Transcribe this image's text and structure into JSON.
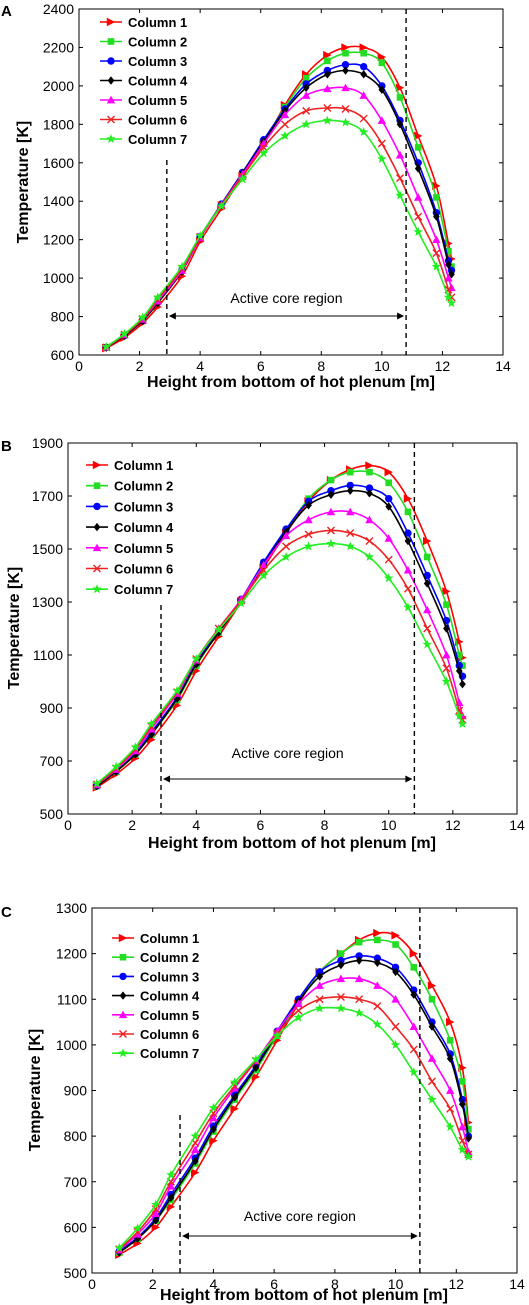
{
  "figure": {
    "series_colors": [
      "#ff0000",
      "#22dd22",
      "#0000ff",
      "#000000",
      "#ff00ff",
      "#ee2222",
      "#22ee22"
    ],
    "series_markers": [
      "triangle-right",
      "square",
      "circle",
      "diamond",
      "triangle-up",
      "x",
      "star"
    ]
  },
  "chart_data": [
    {
      "panel": "A",
      "type": "line",
      "xlabel": "Height from bottom of hot plenum [m]",
      "ylabel": "Temperature [K]",
      "xlim": [
        0,
        14
      ],
      "ylim": [
        600,
        2400
      ],
      "xticks": [
        0,
        2,
        4,
        6,
        8,
        10,
        12,
        14
      ],
      "yticks": [
        600,
        800,
        1000,
        1200,
        1400,
        1600,
        1800,
        2000,
        2200,
        2400
      ],
      "legend": "top-left",
      "grid": false,
      "annotation": {
        "text": "Active core region",
        "x_start": 2.9,
        "x_end": 10.8
      },
      "x": [
        0.9,
        1.5,
        2.1,
        2.6,
        3.4,
        4.0,
        4.7,
        5.4,
        6.1,
        6.8,
        7.5,
        8.2,
        8.8,
        9.4,
        10.0,
        10.6,
        11.2,
        11.8,
        12.2,
        12.3
      ],
      "series": [
        {
          "name": "Column 1",
          "values": [
            635,
            690,
            765,
            850,
            1010,
            1190,
            1360,
            1530,
            1700,
            1900,
            2060,
            2160,
            2200,
            2200,
            2150,
            1990,
            1740,
            1480,
            1180,
            1100
          ]
        },
        {
          "name": "Column 2",
          "values": [
            640,
            705,
            785,
            880,
            1040,
            1210,
            1380,
            1545,
            1710,
            1890,
            2040,
            2130,
            2170,
            2170,
            2120,
            1940,
            1680,
            1420,
            1140,
            1060
          ]
        },
        {
          "name": "Column 3",
          "values": [
            640,
            702,
            780,
            875,
            1040,
            1215,
            1385,
            1550,
            1720,
            1880,
            2010,
            2080,
            2110,
            2100,
            2000,
            1820,
            1600,
            1340,
            1090,
            1040
          ]
        },
        {
          "name": "Column 4",
          "values": [
            638,
            700,
            778,
            870,
            1035,
            1210,
            1380,
            1545,
            1710,
            1870,
            1990,
            2060,
            2080,
            2060,
            1980,
            1800,
            1570,
            1320,
            1070,
            1020
          ]
        },
        {
          "name": "Column 5",
          "values": [
            640,
            705,
            785,
            880,
            1040,
            1210,
            1380,
            1540,
            1700,
            1850,
            1950,
            1985,
            1990,
            1950,
            1820,
            1640,
            1420,
            1200,
            1000,
            950
          ]
        },
        {
          "name": "Column 6",
          "values": [
            640,
            706,
            788,
            890,
            1050,
            1215,
            1380,
            1530,
            1680,
            1800,
            1870,
            1885,
            1880,
            1830,
            1700,
            1520,
            1320,
            1130,
            940,
            900
          ]
        },
        {
          "name": "Column 7",
          "values": [
            642,
            710,
            795,
            900,
            1060,
            1220,
            1375,
            1515,
            1650,
            1740,
            1800,
            1820,
            1810,
            1760,
            1620,
            1430,
            1240,
            1060,
            900,
            870
          ]
        }
      ]
    },
    {
      "panel": "B",
      "type": "line",
      "xlabel": "Height from bottom of hot plenum [m]",
      "ylabel": "Temperature [K]",
      "xlim": [
        0,
        14
      ],
      "ylim": [
        500,
        1900
      ],
      "xticks": [
        0,
        2,
        4,
        6,
        8,
        10,
        12,
        14
      ],
      "yticks": [
        500,
        700,
        900,
        1100,
        1300,
        1500,
        1700,
        1900
      ],
      "legend": "top-left",
      "grid": false,
      "annotation": {
        "text": "Active core region",
        "x_start": 2.9,
        "x_end": 10.8
      },
      "x": [
        0.9,
        1.5,
        2.1,
        2.6,
        3.4,
        4.0,
        4.7,
        5.4,
        6.1,
        6.8,
        7.5,
        8.2,
        8.8,
        9.4,
        10.0,
        10.6,
        11.2,
        11.8,
        12.2,
        12.3
      ],
      "series": [
        {
          "name": "Column 1",
          "values": [
            600,
            650,
            710,
            780,
            910,
            1040,
            1170,
            1300,
            1430,
            1560,
            1680,
            1760,
            1800,
            1815,
            1790,
            1690,
            1530,
            1340,
            1150,
            1090
          ]
        },
        {
          "name": "Column 2",
          "values": [
            605,
            660,
            725,
            800,
            930,
            1060,
            1185,
            1305,
            1440,
            1570,
            1690,
            1760,
            1790,
            1790,
            1750,
            1640,
            1470,
            1290,
            1100,
            1060
          ]
        },
        {
          "name": "Column 3",
          "values": [
            607,
            662,
            728,
            808,
            940,
            1070,
            1190,
            1310,
            1450,
            1575,
            1680,
            1720,
            1740,
            1730,
            1690,
            1560,
            1400,
            1230,
            1060,
            1020
          ]
        },
        {
          "name": "Column 4",
          "values": [
            605,
            660,
            725,
            800,
            935,
            1065,
            1185,
            1305,
            1440,
            1565,
            1665,
            1705,
            1720,
            1710,
            1660,
            1530,
            1370,
            1200,
            1040,
            990
          ]
        },
        {
          "name": "Column 5",
          "values": [
            610,
            668,
            738,
            820,
            955,
            1080,
            1200,
            1310,
            1440,
            1550,
            1610,
            1640,
            1640,
            1610,
            1540,
            1420,
            1270,
            1100,
            920,
            870
          ]
        },
        {
          "name": "Column 6",
          "values": [
            612,
            672,
            745,
            830,
            960,
            1085,
            1200,
            1305,
            1420,
            1510,
            1555,
            1570,
            1560,
            1530,
            1460,
            1350,
            1200,
            1050,
            890,
            855
          ]
        },
        {
          "name": "Column 7",
          "values": [
            615,
            678,
            752,
            840,
            965,
            1085,
            1195,
            1295,
            1400,
            1470,
            1510,
            1520,
            1510,
            1470,
            1390,
            1280,
            1140,
            1000,
            870,
            840
          ]
        }
      ]
    },
    {
      "panel": "C",
      "type": "line",
      "xlabel": "Height from bottom of hot plenum [m]",
      "ylabel": "Temperature [K]",
      "xlim": [
        0,
        14
      ],
      "ylim": [
        500,
        1300
      ],
      "xticks": [
        0,
        2,
        4,
        6,
        8,
        10,
        12,
        14
      ],
      "yticks": [
        500,
        600,
        700,
        800,
        900,
        1000,
        1100,
        1200,
        1300
      ],
      "legend": "top-left",
      "grid": false,
      "annotation": {
        "text": "Active core region",
        "x_start": 2.9,
        "x_end": 10.8
      },
      "x": [
        0.9,
        1.5,
        2.1,
        2.6,
        3.4,
        4.0,
        4.7,
        5.4,
        6.1,
        6.8,
        7.5,
        8.2,
        8.8,
        9.4,
        10.0,
        10.6,
        11.2,
        11.8,
        12.2,
        12.4
      ],
      "series": [
        {
          "name": "Column 1",
          "values": [
            540,
            565,
            600,
            645,
            720,
            790,
            860,
            930,
            1010,
            1090,
            1160,
            1200,
            1230,
            1245,
            1240,
            1200,
            1130,
            1050,
            950,
            830
          ]
        },
        {
          "name": "Column 2",
          "values": [
            545,
            575,
            615,
            660,
            740,
            810,
            880,
            945,
            1020,
            1095,
            1160,
            1200,
            1225,
            1230,
            1220,
            1170,
            1100,
            1010,
            920,
            815
          ]
        },
        {
          "name": "Column 3",
          "values": [
            548,
            578,
            620,
            672,
            752,
            822,
            890,
            955,
            1030,
            1100,
            1160,
            1185,
            1195,
            1190,
            1170,
            1120,
            1050,
            980,
            880,
            800
          ]
        },
        {
          "name": "Column 4",
          "values": [
            545,
            575,
            615,
            665,
            745,
            815,
            885,
            950,
            1025,
            1095,
            1150,
            1175,
            1185,
            1180,
            1160,
            1110,
            1040,
            970,
            870,
            795
          ]
        },
        {
          "name": "Column 5",
          "values": [
            550,
            585,
            630,
            690,
            770,
            840,
            905,
            965,
            1030,
            1090,
            1130,
            1145,
            1145,
            1130,
            1100,
            1040,
            970,
            900,
            820,
            765
          ]
        },
        {
          "name": "Column 6",
          "values": [
            552,
            590,
            640,
            700,
            785,
            850,
            910,
            965,
            1025,
            1075,
            1100,
            1105,
            1100,
            1085,
            1040,
            990,
            920,
            860,
            790,
            760
          ]
        },
        {
          "name": "Column 7",
          "values": [
            555,
            598,
            650,
            715,
            800,
            862,
            918,
            968,
            1020,
            1060,
            1080,
            1080,
            1070,
            1045,
            1000,
            940,
            880,
            820,
            770,
            755
          ]
        }
      ]
    }
  ]
}
